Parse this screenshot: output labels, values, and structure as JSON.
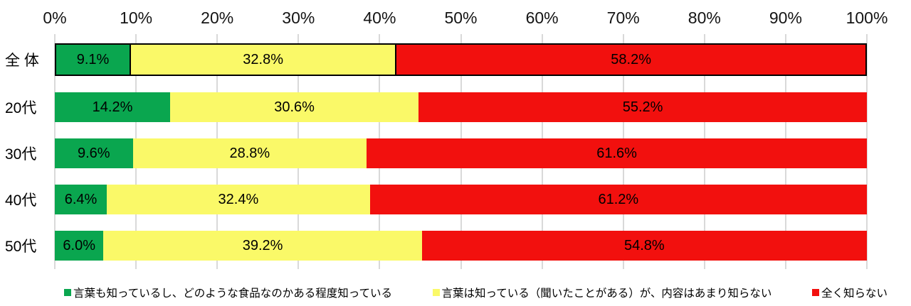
{
  "chart_data": {
    "type": "bar",
    "stacked": true,
    "orientation": "horizontal",
    "title": "",
    "categories": [
      "全 体",
      "20代",
      "30代",
      "40代",
      "50代"
    ],
    "series": [
      {
        "name": "言葉も知っているし、どのような食品なのかある程度知っている",
        "color": "#0aa64f",
        "values": [
          9.1,
          14.2,
          9.6,
          6.4,
          6.0
        ],
        "labels": [
          "9.1%",
          "14.2%",
          "9.6%",
          "6.4%",
          "6.0%"
        ]
      },
      {
        "name": "言葉は知っている（聞いたことがある）が、内容はあまり知らない",
        "color": "#faf968",
        "values": [
          32.8,
          30.6,
          28.8,
          32.4,
          39.2
        ],
        "labels": [
          "32.8%",
          "30.6%",
          "28.8%",
          "32.4%",
          "39.2%"
        ]
      },
      {
        "name": "全く知らない",
        "color": "#f2100e",
        "values": [
          58.2,
          55.2,
          61.6,
          61.2,
          54.8
        ],
        "labels": [
          "58.2%",
          "55.2%",
          "61.6%",
          "61.2%",
          "54.8%"
        ]
      }
    ],
    "x_axis": {
      "position": "top",
      "min": 0,
      "max": 100,
      "ticks": [
        "0%",
        "10%",
        "20%",
        "30%",
        "40%",
        "50%",
        "60%",
        "70%",
        "80%",
        "90%",
        "100%"
      ]
    },
    "grid": true,
    "gridline_color": "#d9d9d9",
    "legend_position": "bottom",
    "emphasized_category_index": 0,
    "emphasis_border_color": "#000000"
  }
}
